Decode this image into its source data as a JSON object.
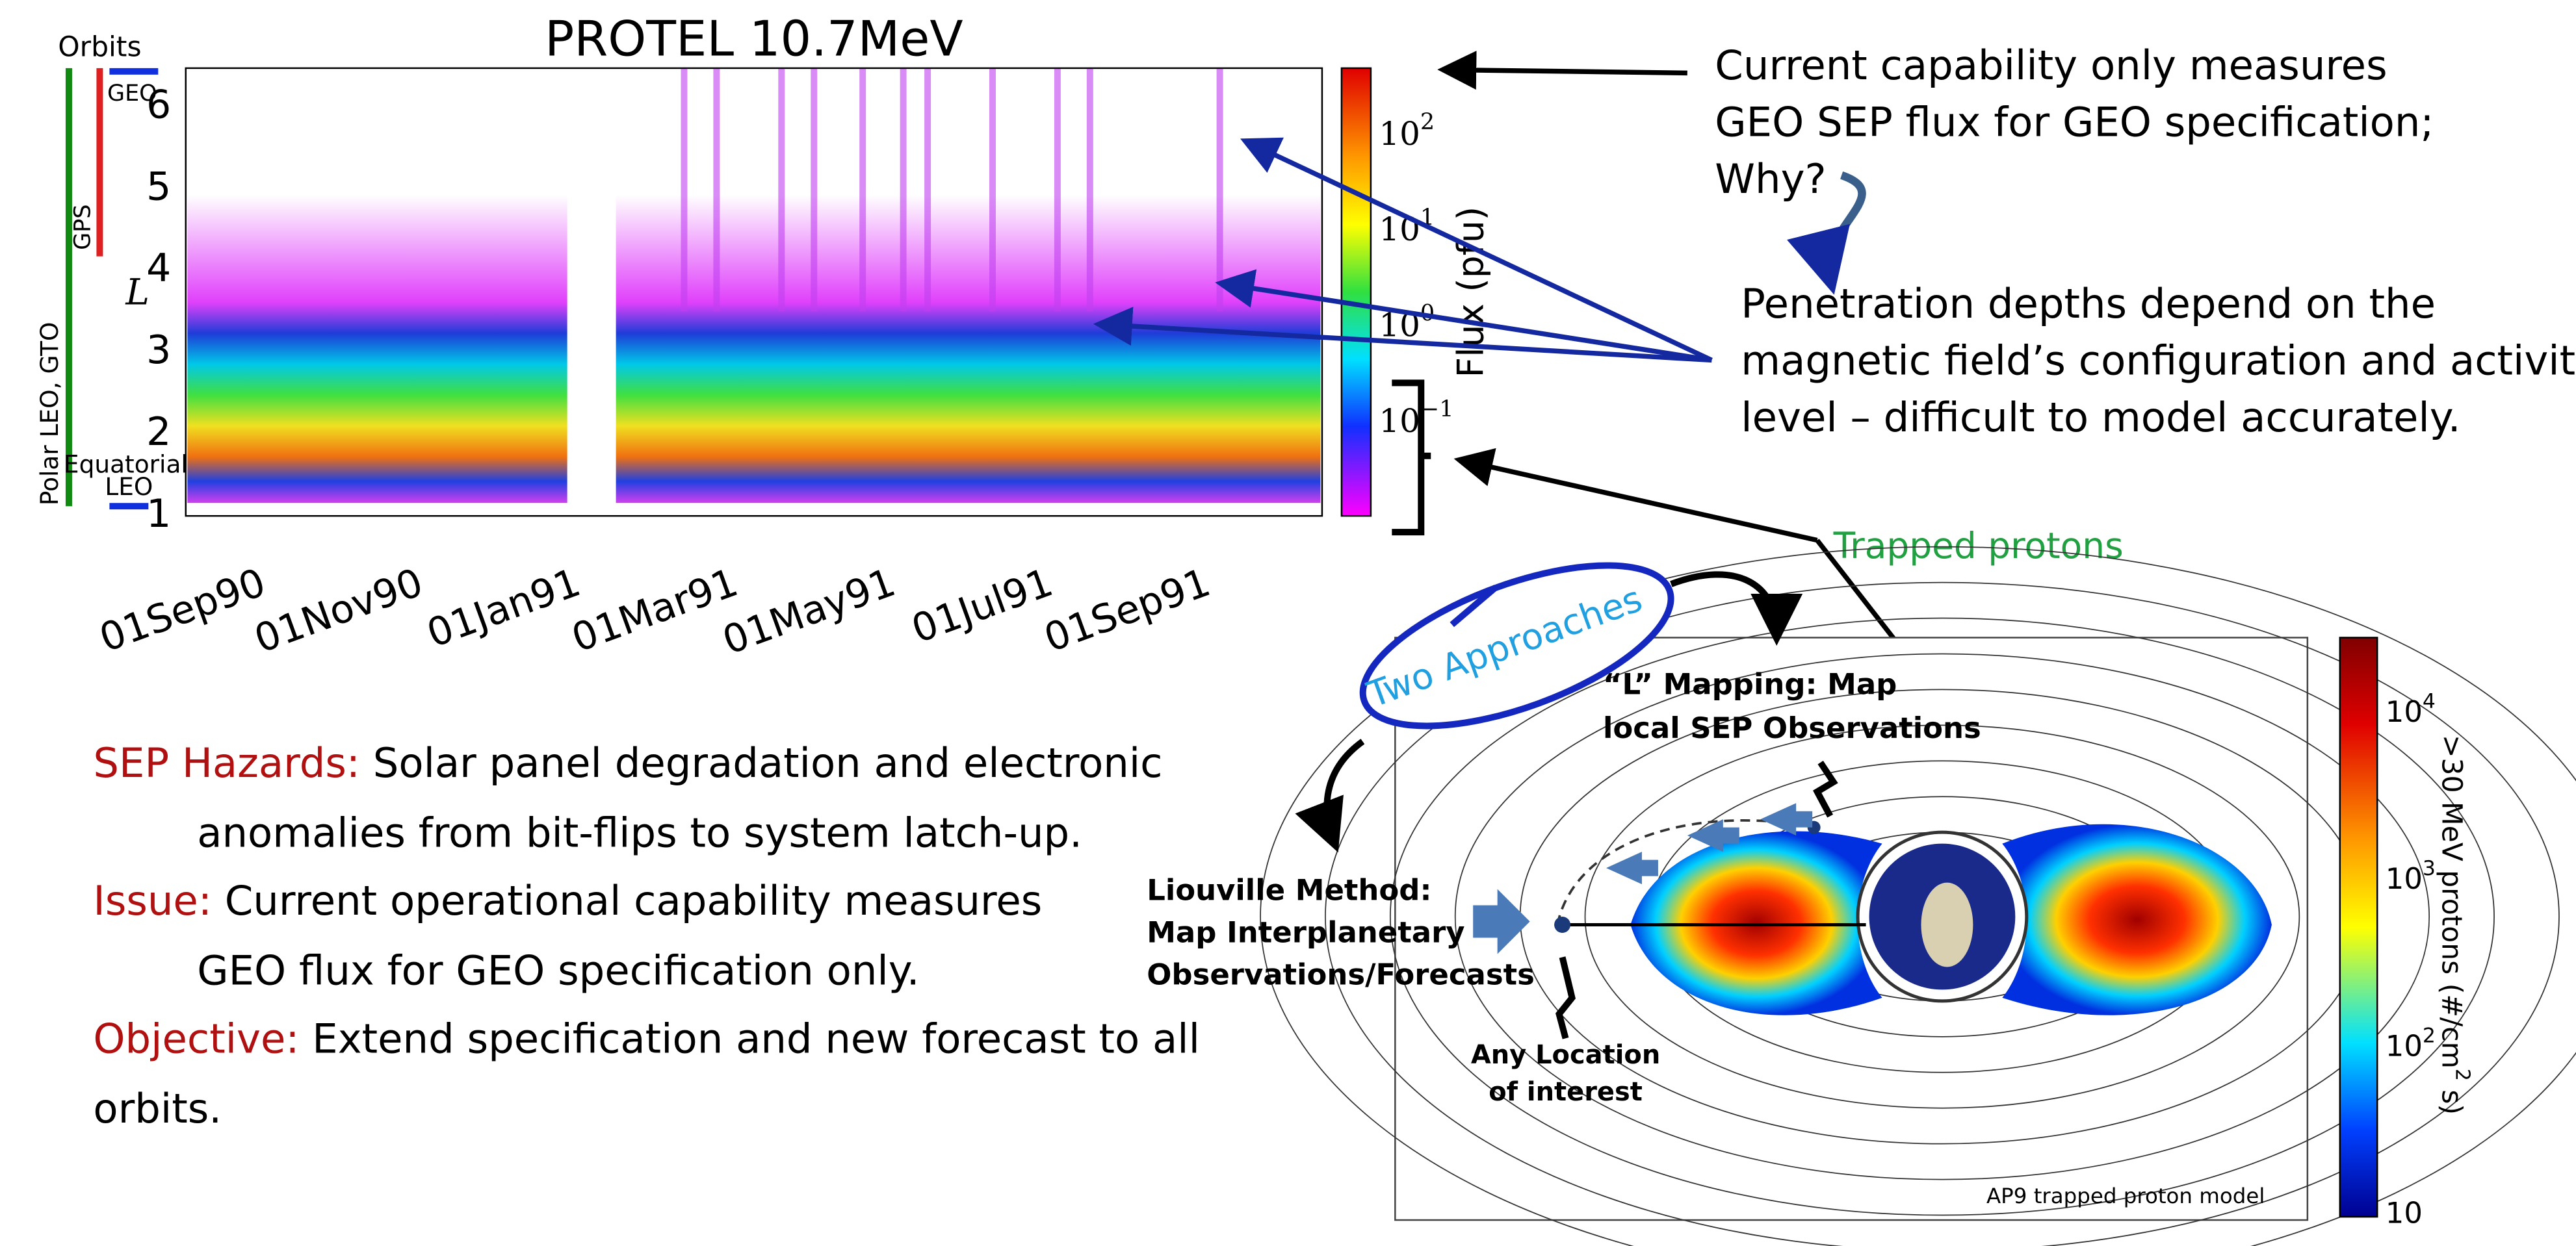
{
  "spectrogram": {
    "title": "PROTEL 10.7MeV",
    "y_label": "L",
    "y_ticks": [
      "1",
      "2",
      "3",
      "4",
      "5",
      "6"
    ],
    "x_ticks": [
      "01Sep90",
      "01Nov90",
      "01Jan91",
      "01Mar91",
      "01May91",
      "01Jul91",
      "01Sep91"
    ],
    "colorbar_label": "Flux (pfu)",
    "colorbar_ticks": [
      {
        "base": "10",
        "exponent": "2"
      },
      {
        "base": "10",
        "exponent": "1"
      },
      {
        "base": "10",
        "exponent": "0"
      },
      {
        "base": "10",
        "exponent": "−1"
      }
    ]
  },
  "orbits": {
    "title": "Orbits",
    "geo": "GEO",
    "gps": "GPS",
    "polar": "Polar LEO, GTO",
    "equatorial": "Equatorial",
    "leo": "LEO"
  },
  "callouts": {
    "current": [
      "Current capability only measures",
      "GEO SEP flux for GEO specification;",
      "Why?"
    ],
    "penetration": [
      "Penetration depths depend on the",
      "magnetic field’s configuration and activity",
      "level – difficult to model accurately."
    ],
    "trapped": "Trapped protons"
  },
  "bullets": [
    {
      "label": "SEP Hazards:",
      "lines": [
        " Solar panel degradation and electronic",
        "anomalies from bit-flips to system latch-up."
      ]
    },
    {
      "label": "Issue:",
      "lines": [
        " Current operational capability measures",
        "GEO flux for GEO specification only."
      ]
    },
    {
      "label": "Objective:",
      "lines": [
        " Extend specification and new forecast to all",
        "orbits."
      ]
    }
  ],
  "diagram": {
    "approaches": "Two Approaches",
    "l_mapping": [
      "“L” Mapping: Map",
      "local SEP Observations"
    ],
    "liouville": [
      "Liouville Method:",
      "Map Interplanetary",
      "Observations/Forecasts"
    ],
    "location": [
      "Any Location",
      "of interest"
    ],
    "caption": "AP9 trapped proton model",
    "colorbar_label": {
      "text": ">30 MeV protons (#/cm",
      "exponent": "2",
      "unit": " s)"
    },
    "colorbar_ticks": [
      {
        "base": "10",
        "exponent": "4"
      },
      {
        "base": "10",
        "exponent": "3"
      },
      {
        "base": "10",
        "exponent": "2"
      },
      {
        "base": "10",
        "exponent": ""
      }
    ]
  }
}
